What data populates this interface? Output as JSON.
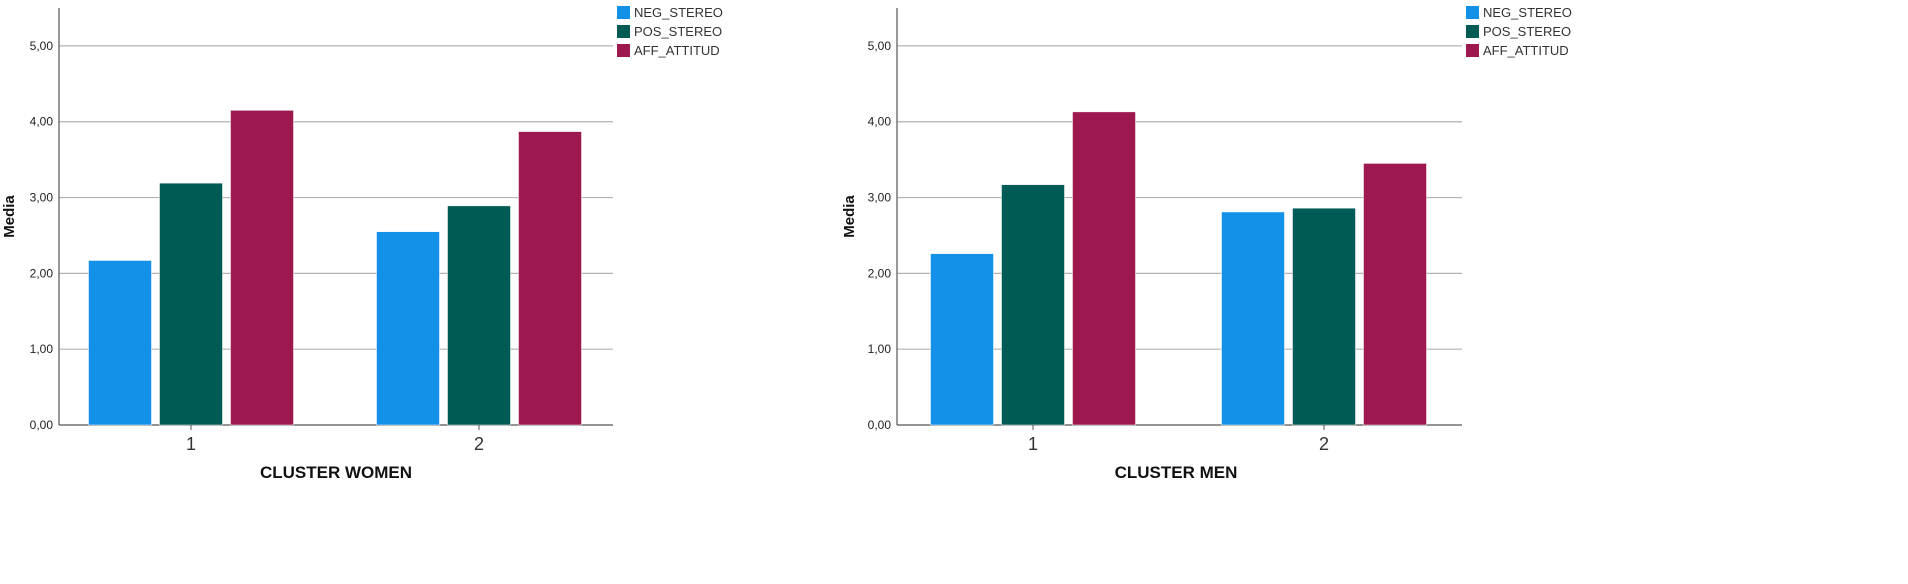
{
  "chart_data": [
    {
      "type": "bar",
      "categories": [
        "1",
        "2"
      ],
      "series": [
        {
          "name": "NEG_STEREO",
          "color": "#1391e8",
          "values": [
            2.17,
            2.55
          ]
        },
        {
          "name": "POS_STEREO",
          "color": "#005a55",
          "values": [
            3.19,
            2.89
          ]
        },
        {
          "name": "AFF_ATTITUD",
          "color": "#9e1850",
          "values": [
            4.15,
            3.87
          ]
        }
      ],
      "ylabel": "Media",
      "xlabel": "CLUSTER WOMEN",
      "ylim": [
        0,
        5.5
      ],
      "yticks": [
        0,
        1,
        2,
        3,
        4,
        5
      ],
      "ytick_labels": [
        "0,00",
        "1,00",
        "2,00",
        "3,00",
        "4,00",
        "5,00"
      ],
      "grid": true,
      "legend_position": "top-right"
    },
    {
      "type": "bar",
      "categories": [
        "1",
        "2"
      ],
      "series": [
        {
          "name": "NEG_STEREO",
          "color": "#1391e8",
          "values": [
            2.26,
            2.81
          ]
        },
        {
          "name": "POS_STEREO",
          "color": "#005a55",
          "values": [
            3.17,
            2.86
          ]
        },
        {
          "name": "AFF_ATTITUD",
          "color": "#9e1850",
          "values": [
            4.13,
            3.45
          ]
        }
      ],
      "ylabel": "Media",
      "xlabel": "CLUSTER MEN",
      "ylim": [
        0,
        5.5
      ],
      "yticks": [
        0,
        1,
        2,
        3,
        4,
        5
      ],
      "ytick_labels": [
        "0,00",
        "1,00",
        "2,00",
        "3,00",
        "4,00",
        "5,00"
      ],
      "grid": true,
      "legend_position": "top-right"
    }
  ]
}
